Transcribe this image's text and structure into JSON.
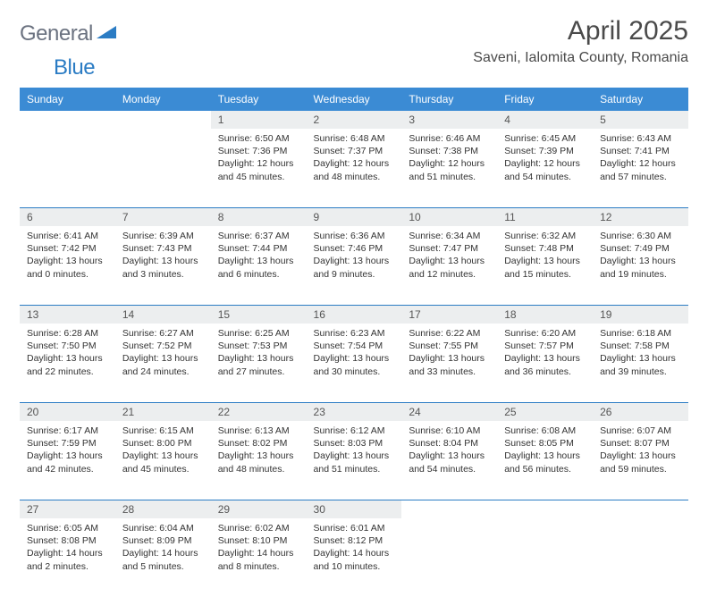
{
  "brand": {
    "part1": "General",
    "part2": "Blue"
  },
  "title": "April 2025",
  "location": "Saveni, Ialomita County, Romania",
  "weekdays": [
    "Sunday",
    "Monday",
    "Tuesday",
    "Wednesday",
    "Thursday",
    "Friday",
    "Saturday"
  ],
  "colors": {
    "header_bg": "#3b8bd4",
    "header_text": "#ffffff",
    "daynum_bg": "#eceeef",
    "border": "#2b7cc4",
    "logo_gray": "#6b7280",
    "logo_blue": "#2b7cc4",
    "text": "#333333"
  },
  "weeks": [
    [
      {
        "num": "",
        "sunrise": "",
        "sunset": "",
        "daylight": ""
      },
      {
        "num": "",
        "sunrise": "",
        "sunset": "",
        "daylight": ""
      },
      {
        "num": "1",
        "sunrise": "Sunrise: 6:50 AM",
        "sunset": "Sunset: 7:36 PM",
        "daylight": "Daylight: 12 hours and 45 minutes."
      },
      {
        "num": "2",
        "sunrise": "Sunrise: 6:48 AM",
        "sunset": "Sunset: 7:37 PM",
        "daylight": "Daylight: 12 hours and 48 minutes."
      },
      {
        "num": "3",
        "sunrise": "Sunrise: 6:46 AM",
        "sunset": "Sunset: 7:38 PM",
        "daylight": "Daylight: 12 hours and 51 minutes."
      },
      {
        "num": "4",
        "sunrise": "Sunrise: 6:45 AM",
        "sunset": "Sunset: 7:39 PM",
        "daylight": "Daylight: 12 hours and 54 minutes."
      },
      {
        "num": "5",
        "sunrise": "Sunrise: 6:43 AM",
        "sunset": "Sunset: 7:41 PM",
        "daylight": "Daylight: 12 hours and 57 minutes."
      }
    ],
    [
      {
        "num": "6",
        "sunrise": "Sunrise: 6:41 AM",
        "sunset": "Sunset: 7:42 PM",
        "daylight": "Daylight: 13 hours and 0 minutes."
      },
      {
        "num": "7",
        "sunrise": "Sunrise: 6:39 AM",
        "sunset": "Sunset: 7:43 PM",
        "daylight": "Daylight: 13 hours and 3 minutes."
      },
      {
        "num": "8",
        "sunrise": "Sunrise: 6:37 AM",
        "sunset": "Sunset: 7:44 PM",
        "daylight": "Daylight: 13 hours and 6 minutes."
      },
      {
        "num": "9",
        "sunrise": "Sunrise: 6:36 AM",
        "sunset": "Sunset: 7:46 PM",
        "daylight": "Daylight: 13 hours and 9 minutes."
      },
      {
        "num": "10",
        "sunrise": "Sunrise: 6:34 AM",
        "sunset": "Sunset: 7:47 PM",
        "daylight": "Daylight: 13 hours and 12 minutes."
      },
      {
        "num": "11",
        "sunrise": "Sunrise: 6:32 AM",
        "sunset": "Sunset: 7:48 PM",
        "daylight": "Daylight: 13 hours and 15 minutes."
      },
      {
        "num": "12",
        "sunrise": "Sunrise: 6:30 AM",
        "sunset": "Sunset: 7:49 PM",
        "daylight": "Daylight: 13 hours and 19 minutes."
      }
    ],
    [
      {
        "num": "13",
        "sunrise": "Sunrise: 6:28 AM",
        "sunset": "Sunset: 7:50 PM",
        "daylight": "Daylight: 13 hours and 22 minutes."
      },
      {
        "num": "14",
        "sunrise": "Sunrise: 6:27 AM",
        "sunset": "Sunset: 7:52 PM",
        "daylight": "Daylight: 13 hours and 24 minutes."
      },
      {
        "num": "15",
        "sunrise": "Sunrise: 6:25 AM",
        "sunset": "Sunset: 7:53 PM",
        "daylight": "Daylight: 13 hours and 27 minutes."
      },
      {
        "num": "16",
        "sunrise": "Sunrise: 6:23 AM",
        "sunset": "Sunset: 7:54 PM",
        "daylight": "Daylight: 13 hours and 30 minutes."
      },
      {
        "num": "17",
        "sunrise": "Sunrise: 6:22 AM",
        "sunset": "Sunset: 7:55 PM",
        "daylight": "Daylight: 13 hours and 33 minutes."
      },
      {
        "num": "18",
        "sunrise": "Sunrise: 6:20 AM",
        "sunset": "Sunset: 7:57 PM",
        "daylight": "Daylight: 13 hours and 36 minutes."
      },
      {
        "num": "19",
        "sunrise": "Sunrise: 6:18 AM",
        "sunset": "Sunset: 7:58 PM",
        "daylight": "Daylight: 13 hours and 39 minutes."
      }
    ],
    [
      {
        "num": "20",
        "sunrise": "Sunrise: 6:17 AM",
        "sunset": "Sunset: 7:59 PM",
        "daylight": "Daylight: 13 hours and 42 minutes."
      },
      {
        "num": "21",
        "sunrise": "Sunrise: 6:15 AM",
        "sunset": "Sunset: 8:00 PM",
        "daylight": "Daylight: 13 hours and 45 minutes."
      },
      {
        "num": "22",
        "sunrise": "Sunrise: 6:13 AM",
        "sunset": "Sunset: 8:02 PM",
        "daylight": "Daylight: 13 hours and 48 minutes."
      },
      {
        "num": "23",
        "sunrise": "Sunrise: 6:12 AM",
        "sunset": "Sunset: 8:03 PM",
        "daylight": "Daylight: 13 hours and 51 minutes."
      },
      {
        "num": "24",
        "sunrise": "Sunrise: 6:10 AM",
        "sunset": "Sunset: 8:04 PM",
        "daylight": "Daylight: 13 hours and 54 minutes."
      },
      {
        "num": "25",
        "sunrise": "Sunrise: 6:08 AM",
        "sunset": "Sunset: 8:05 PM",
        "daylight": "Daylight: 13 hours and 56 minutes."
      },
      {
        "num": "26",
        "sunrise": "Sunrise: 6:07 AM",
        "sunset": "Sunset: 8:07 PM",
        "daylight": "Daylight: 13 hours and 59 minutes."
      }
    ],
    [
      {
        "num": "27",
        "sunrise": "Sunrise: 6:05 AM",
        "sunset": "Sunset: 8:08 PM",
        "daylight": "Daylight: 14 hours and 2 minutes."
      },
      {
        "num": "28",
        "sunrise": "Sunrise: 6:04 AM",
        "sunset": "Sunset: 8:09 PM",
        "daylight": "Daylight: 14 hours and 5 minutes."
      },
      {
        "num": "29",
        "sunrise": "Sunrise: 6:02 AM",
        "sunset": "Sunset: 8:10 PM",
        "daylight": "Daylight: 14 hours and 8 minutes."
      },
      {
        "num": "30",
        "sunrise": "Sunrise: 6:01 AM",
        "sunset": "Sunset: 8:12 PM",
        "daylight": "Daylight: 14 hours and 10 minutes."
      },
      {
        "num": "",
        "sunrise": "",
        "sunset": "",
        "daylight": ""
      },
      {
        "num": "",
        "sunrise": "",
        "sunset": "",
        "daylight": ""
      },
      {
        "num": "",
        "sunrise": "",
        "sunset": "",
        "daylight": ""
      }
    ]
  ]
}
